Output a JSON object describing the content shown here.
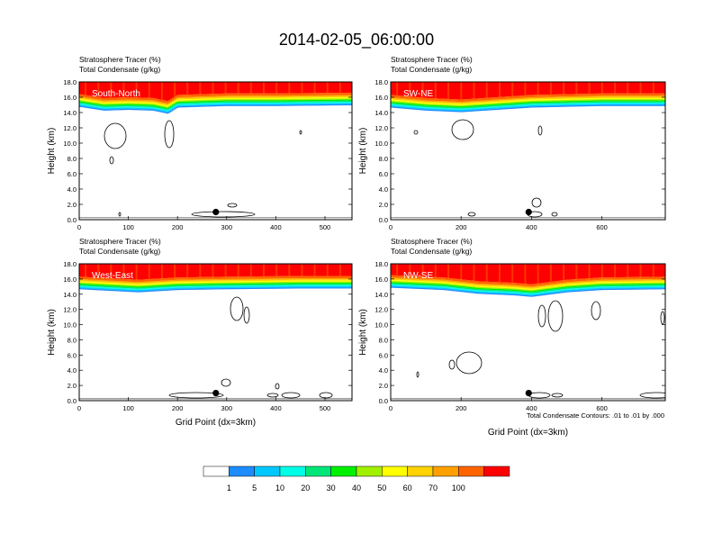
{
  "figure_title": "2014-02-05_06:00:00",
  "contour_note": "Total Condensate Contours: .01 to .01 by .000",
  "colorbar": {
    "labels": [
      "1",
      "5",
      "10",
      "20",
      "30",
      "40",
      "50",
      "60",
      "70",
      "100"
    ],
    "colors": [
      "#ffffff",
      "#1e8cff",
      "#00c8ff",
      "#00ffe6",
      "#00e678",
      "#00f000",
      "#a0f000",
      "#ffff00",
      "#ffd200",
      "#ffa000",
      "#ff6400",
      "#ff0000"
    ]
  },
  "chart_data": [
    {
      "type": "heatmap",
      "panel_label": "South-North",
      "subtitle_line1": "Stratosphere Tracer   (%)",
      "subtitle_line2": "Total Condensate   (g/kg)",
      "ylabel": "Height (km)",
      "xlabel": "",
      "xlim": [
        0,
        555
      ],
      "ylim": [
        0,
        18
      ],
      "xticks": [
        0,
        100,
        200,
        300,
        400,
        500
      ],
      "yticks": [
        "0.0",
        "2.0",
        "4.0",
        "6.0",
        "8.0",
        "10.0",
        "12.0",
        "14.0",
        "16.0",
        "18.0"
      ],
      "tracer_interface_km": [
        [
          0,
          15.5
        ],
        [
          50,
          15.0
        ],
        [
          100,
          15.1
        ],
        [
          150,
          15.0
        ],
        [
          180,
          14.6
        ],
        [
          200,
          15.4
        ],
        [
          300,
          15.6
        ],
        [
          400,
          15.6
        ],
        [
          555,
          15.7
        ]
      ],
      "surface_marker": {
        "x": 278,
        "y": 1.0
      }
    },
    {
      "type": "heatmap",
      "panel_label": "SW-NE",
      "subtitle_line1": "Stratosphere Tracer   (%)",
      "subtitle_line2": "Total Condensate   (g/kg)",
      "ylabel": "Height (km)",
      "xlabel": "",
      "xlim": [
        0,
        780
      ],
      "ylim": [
        0,
        18
      ],
      "xticks": [
        0,
        200,
        400,
        600
      ],
      "yticks": [
        "0.0",
        "2.0",
        "4.0",
        "6.0",
        "8.0",
        "10.0",
        "12.0",
        "14.0",
        "16.0",
        "18.0"
      ],
      "tracer_interface_km": [
        [
          0,
          15.4
        ],
        [
          100,
          15.0
        ],
        [
          200,
          14.8
        ],
        [
          300,
          15.1
        ],
        [
          400,
          15.4
        ],
        [
          600,
          15.6
        ],
        [
          780,
          15.6
        ]
      ],
      "surface_marker": {
        "x": 392,
        "y": 1.0
      }
    },
    {
      "type": "heatmap",
      "panel_label": "West-East",
      "subtitle_line1": "Stratosphere Tracer   (%)",
      "subtitle_line2": "Total Condensate   (g/kg)",
      "ylabel": "Height (km)",
      "xlabel": "Grid Point (dx=3km)",
      "xlim": [
        0,
        555
      ],
      "ylim": [
        0,
        18
      ],
      "xticks": [
        0,
        100,
        200,
        300,
        400,
        500
      ],
      "yticks": [
        "0.0",
        "2.0",
        "4.0",
        "6.0",
        "8.0",
        "10.0",
        "12.0",
        "14.0",
        "16.0",
        "18.0"
      ],
      "tracer_interface_km": [
        [
          0,
          15.4
        ],
        [
          60,
          15.2
        ],
        [
          120,
          15.0
        ],
        [
          200,
          15.3
        ],
        [
          300,
          15.4
        ],
        [
          450,
          15.5
        ],
        [
          555,
          15.5
        ]
      ],
      "surface_marker": {
        "x": 278,
        "y": 1.0
      }
    },
    {
      "type": "heatmap",
      "panel_label": "NW-SE",
      "subtitle_line1": "Stratosphere Tracer   (%)",
      "subtitle_line2": "Total Condensate   (g/kg)",
      "ylabel": "Height (km)",
      "xlabel": "Grid Point (dx=3km)",
      "xlim": [
        0,
        780
      ],
      "ylim": [
        0,
        18
      ],
      "xticks": [
        0,
        200,
        400,
        600
      ],
      "yticks": [
        "0.0",
        "2.0",
        "4.0",
        "6.0",
        "8.0",
        "10.0",
        "12.0",
        "14.0",
        "16.0",
        "18.0"
      ],
      "tracer_interface_km": [
        [
          0,
          15.6
        ],
        [
          150,
          15.3
        ],
        [
          250,
          14.8
        ],
        [
          350,
          14.6
        ],
        [
          400,
          14.4
        ],
        [
          500,
          15.0
        ],
        [
          600,
          15.3
        ],
        [
          780,
          15.4
        ]
      ],
      "surface_marker": {
        "x": 392,
        "y": 1.0
      }
    }
  ]
}
